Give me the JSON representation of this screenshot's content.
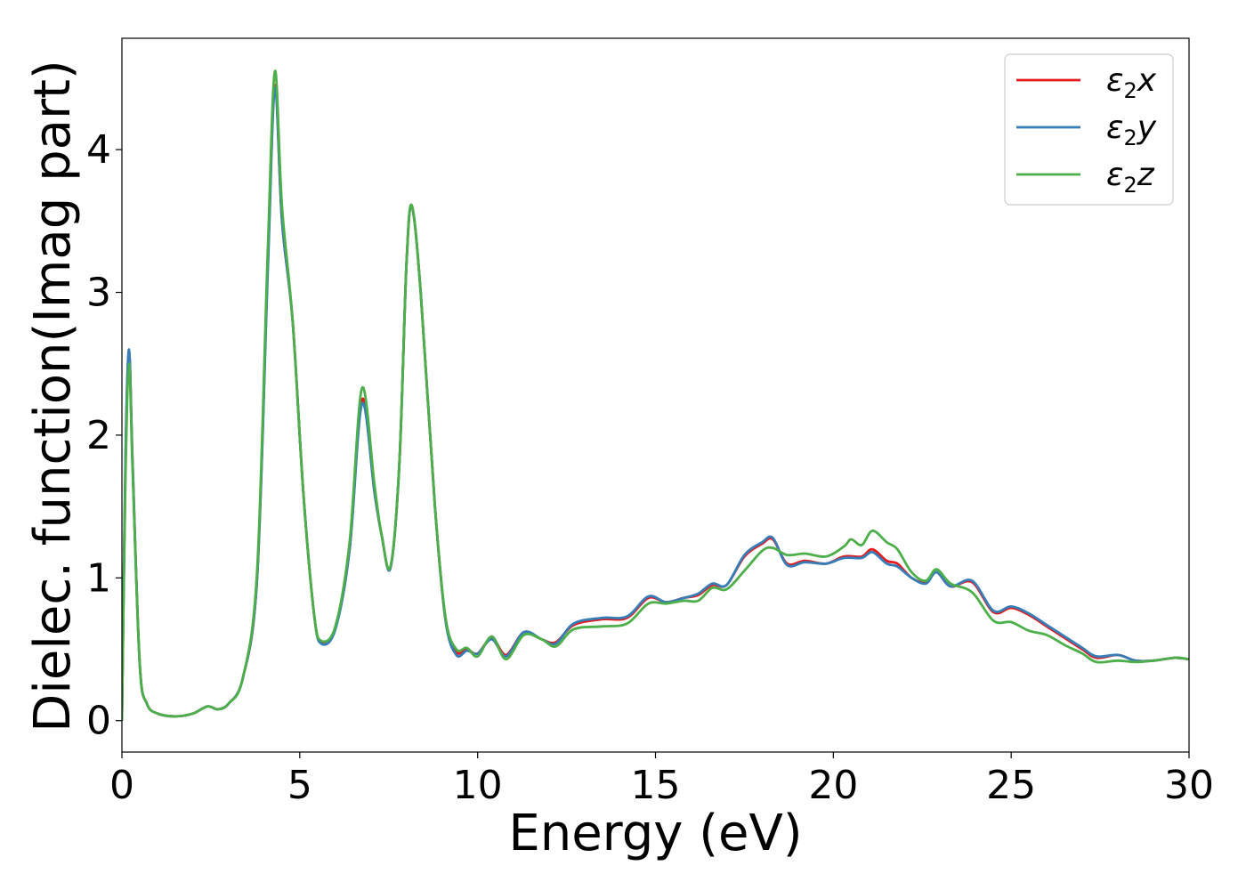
{
  "chart_data": {
    "type": "line",
    "title": "",
    "xlabel": "Energy (eV)",
    "ylabel": "Dielec. function(Imag part)",
    "xlim": [
      0,
      30
    ],
    "ylim": [
      -0.22,
      4.78
    ],
    "xticks": [
      0,
      5,
      10,
      15,
      20,
      25,
      30
    ],
    "xtick_labels": [
      "0",
      "5",
      "10",
      "15",
      "20",
      "25",
      "30"
    ],
    "yticks": [
      0,
      1,
      2,
      3,
      4
    ],
    "ytick_labels": [
      "0",
      "1",
      "2",
      "3",
      "4"
    ],
    "grid": false,
    "legend_position": "top-right",
    "series": [
      {
        "name": "ε₂x",
        "legend": {
          "base": "ε",
          "sub": "2",
          "suffix": "x"
        },
        "color": "#e41a1c",
        "points": [
          [
            0,
            0
          ],
          [
            0.1,
            1.8
          ],
          [
            0.2,
            2.58
          ],
          [
            0.3,
            1.8
          ],
          [
            0.5,
            0.4
          ],
          [
            0.7,
            0.12
          ],
          [
            1.0,
            0.05
          ],
          [
            1.5,
            0.03
          ],
          [
            2.0,
            0.05
          ],
          [
            2.4,
            0.1
          ],
          [
            2.7,
            0.08
          ],
          [
            3.0,
            0.12
          ],
          [
            3.4,
            0.3
          ],
          [
            3.8,
            1.0
          ],
          [
            4.1,
            3.2
          ],
          [
            4.3,
            4.45
          ],
          [
            4.5,
            3.5
          ],
          [
            4.8,
            2.8
          ],
          [
            5.1,
            1.6
          ],
          [
            5.4,
            0.75
          ],
          [
            5.6,
            0.55
          ],
          [
            6.0,
            0.65
          ],
          [
            6.4,
            1.2
          ],
          [
            6.75,
            2.25
          ],
          [
            7.1,
            1.6
          ],
          [
            7.3,
            1.3
          ],
          [
            7.55,
            1.07
          ],
          [
            7.8,
            1.8
          ],
          [
            8.0,
            3.2
          ],
          [
            8.15,
            3.6
          ],
          [
            8.4,
            3.0
          ],
          [
            8.8,
            1.5
          ],
          [
            9.1,
            0.7
          ],
          [
            9.4,
            0.48
          ],
          [
            9.7,
            0.5
          ],
          [
            10.0,
            0.47
          ],
          [
            10.4,
            0.58
          ],
          [
            10.8,
            0.46
          ],
          [
            11.3,
            0.62
          ],
          [
            11.8,
            0.57
          ],
          [
            12.2,
            0.55
          ],
          [
            12.7,
            0.67
          ],
          [
            13.5,
            0.71
          ],
          [
            14.2,
            0.72
          ],
          [
            14.8,
            0.86
          ],
          [
            15.3,
            0.83
          ],
          [
            15.8,
            0.86
          ],
          [
            16.2,
            0.88
          ],
          [
            16.6,
            0.95
          ],
          [
            17.0,
            0.95
          ],
          [
            17.5,
            1.15
          ],
          [
            18.0,
            1.24
          ],
          [
            18.3,
            1.27
          ],
          [
            18.7,
            1.1
          ],
          [
            19.2,
            1.12
          ],
          [
            19.8,
            1.1
          ],
          [
            20.3,
            1.15
          ],
          [
            20.8,
            1.15
          ],
          [
            21.1,
            1.2
          ],
          [
            21.5,
            1.12
          ],
          [
            21.8,
            1.1
          ],
          [
            22.2,
            1.0
          ],
          [
            22.6,
            0.97
          ],
          [
            22.9,
            1.04
          ],
          [
            23.3,
            0.94
          ],
          [
            23.9,
            0.97
          ],
          [
            24.5,
            0.76
          ],
          [
            25.0,
            0.79
          ],
          [
            25.5,
            0.74
          ],
          [
            26.0,
            0.66
          ],
          [
            26.5,
            0.58
          ],
          [
            27.0,
            0.5
          ],
          [
            27.4,
            0.44
          ],
          [
            28.0,
            0.46
          ],
          [
            28.5,
            0.42
          ],
          [
            29.0,
            0.42
          ],
          [
            29.6,
            0.44
          ],
          [
            30,
            0.43
          ]
        ]
      },
      {
        "name": "ε₂y",
        "legend": {
          "base": "ε",
          "sub": "2",
          "suffix": "y"
        },
        "color": "#377eb8",
        "points": [
          [
            0,
            0
          ],
          [
            0.1,
            1.85
          ],
          [
            0.2,
            2.6
          ],
          [
            0.3,
            1.8
          ],
          [
            0.5,
            0.4
          ],
          [
            0.7,
            0.12
          ],
          [
            1.0,
            0.05
          ],
          [
            1.5,
            0.03
          ],
          [
            2.0,
            0.05
          ],
          [
            2.4,
            0.1
          ],
          [
            2.7,
            0.08
          ],
          [
            3.0,
            0.12
          ],
          [
            3.4,
            0.3
          ],
          [
            3.8,
            1.0
          ],
          [
            4.1,
            3.15
          ],
          [
            4.3,
            4.43
          ],
          [
            4.5,
            3.5
          ],
          [
            4.8,
            2.8
          ],
          [
            5.1,
            1.6
          ],
          [
            5.4,
            0.75
          ],
          [
            5.6,
            0.54
          ],
          [
            6.0,
            0.64
          ],
          [
            6.4,
            1.2
          ],
          [
            6.75,
            2.22
          ],
          [
            7.1,
            1.6
          ],
          [
            7.3,
            1.3
          ],
          [
            7.55,
            1.07
          ],
          [
            7.8,
            1.8
          ],
          [
            8.0,
            3.2
          ],
          [
            8.15,
            3.6
          ],
          [
            8.4,
            3.0
          ],
          [
            8.8,
            1.5
          ],
          [
            9.1,
            0.7
          ],
          [
            9.4,
            0.46
          ],
          [
            9.7,
            0.49
          ],
          [
            10.0,
            0.47
          ],
          [
            10.4,
            0.57
          ],
          [
            10.8,
            0.45
          ],
          [
            11.3,
            0.62
          ],
          [
            11.8,
            0.57
          ],
          [
            12.2,
            0.54
          ],
          [
            12.7,
            0.68
          ],
          [
            13.5,
            0.72
          ],
          [
            14.2,
            0.73
          ],
          [
            14.8,
            0.87
          ],
          [
            15.3,
            0.83
          ],
          [
            15.8,
            0.86
          ],
          [
            16.2,
            0.89
          ],
          [
            16.6,
            0.96
          ],
          [
            17.0,
            0.95
          ],
          [
            17.5,
            1.16
          ],
          [
            18.0,
            1.25
          ],
          [
            18.3,
            1.28
          ],
          [
            18.7,
            1.09
          ],
          [
            19.2,
            1.11
          ],
          [
            19.8,
            1.1
          ],
          [
            20.3,
            1.14
          ],
          [
            20.8,
            1.14
          ],
          [
            21.1,
            1.18
          ],
          [
            21.5,
            1.1
          ],
          [
            21.8,
            1.08
          ],
          [
            22.2,
            1.0
          ],
          [
            22.6,
            0.96
          ],
          [
            22.9,
            1.04
          ],
          [
            23.3,
            0.94
          ],
          [
            23.9,
            0.98
          ],
          [
            24.5,
            0.77
          ],
          [
            25.0,
            0.8
          ],
          [
            25.5,
            0.75
          ],
          [
            26.0,
            0.67
          ],
          [
            26.5,
            0.59
          ],
          [
            27.0,
            0.51
          ],
          [
            27.4,
            0.45
          ],
          [
            28.0,
            0.46
          ],
          [
            28.5,
            0.42
          ],
          [
            29.0,
            0.42
          ],
          [
            29.6,
            0.44
          ],
          [
            30,
            0.43
          ]
        ]
      },
      {
        "name": "ε₂z",
        "legend": {
          "base": "ε",
          "sub": "2",
          "suffix": "z"
        },
        "color": "#4daf4a",
        "points": [
          [
            0,
            0
          ],
          [
            0.1,
            1.7
          ],
          [
            0.2,
            2.5
          ],
          [
            0.3,
            1.75
          ],
          [
            0.5,
            0.4
          ],
          [
            0.7,
            0.12
          ],
          [
            1.0,
            0.05
          ],
          [
            1.5,
            0.03
          ],
          [
            2.0,
            0.05
          ],
          [
            2.4,
            0.1
          ],
          [
            2.7,
            0.08
          ],
          [
            3.0,
            0.12
          ],
          [
            3.4,
            0.3
          ],
          [
            3.8,
            1.05
          ],
          [
            4.1,
            3.3
          ],
          [
            4.3,
            4.55
          ],
          [
            4.5,
            3.6
          ],
          [
            4.8,
            2.8
          ],
          [
            5.1,
            1.6
          ],
          [
            5.4,
            0.75
          ],
          [
            5.6,
            0.56
          ],
          [
            6.0,
            0.66
          ],
          [
            6.4,
            1.25
          ],
          [
            6.75,
            2.33
          ],
          [
            7.1,
            1.65
          ],
          [
            7.3,
            1.3
          ],
          [
            7.55,
            1.08
          ],
          [
            7.8,
            1.8
          ],
          [
            8.0,
            3.2
          ],
          [
            8.15,
            3.61
          ],
          [
            8.4,
            3.0
          ],
          [
            8.8,
            1.5
          ],
          [
            9.1,
            0.72
          ],
          [
            9.4,
            0.5
          ],
          [
            9.7,
            0.51
          ],
          [
            10.0,
            0.45
          ],
          [
            10.4,
            0.59
          ],
          [
            10.8,
            0.43
          ],
          [
            11.3,
            0.6
          ],
          [
            11.8,
            0.57
          ],
          [
            12.2,
            0.52
          ],
          [
            12.7,
            0.64
          ],
          [
            13.5,
            0.66
          ],
          [
            14.2,
            0.68
          ],
          [
            14.8,
            0.82
          ],
          [
            15.3,
            0.82
          ],
          [
            15.8,
            0.84
          ],
          [
            16.2,
            0.84
          ],
          [
            16.6,
            0.93
          ],
          [
            17.0,
            0.92
          ],
          [
            17.5,
            1.05
          ],
          [
            18.0,
            1.19
          ],
          [
            18.3,
            1.21
          ],
          [
            18.7,
            1.16
          ],
          [
            19.2,
            1.17
          ],
          [
            19.8,
            1.15
          ],
          [
            20.3,
            1.22
          ],
          [
            20.5,
            1.27
          ],
          [
            20.8,
            1.23
          ],
          [
            21.1,
            1.33
          ],
          [
            21.5,
            1.25
          ],
          [
            21.8,
            1.2
          ],
          [
            22.2,
            1.04
          ],
          [
            22.6,
            0.98
          ],
          [
            22.9,
            1.06
          ],
          [
            23.3,
            0.96
          ],
          [
            23.9,
            0.9
          ],
          [
            24.5,
            0.7
          ],
          [
            25.0,
            0.69
          ],
          [
            25.5,
            0.63
          ],
          [
            26.0,
            0.6
          ],
          [
            26.5,
            0.53
          ],
          [
            27.0,
            0.47
          ],
          [
            27.4,
            0.41
          ],
          [
            28.0,
            0.42
          ],
          [
            28.5,
            0.41
          ],
          [
            29.0,
            0.42
          ],
          [
            29.6,
            0.44
          ],
          [
            30,
            0.43
          ]
        ]
      }
    ]
  }
}
